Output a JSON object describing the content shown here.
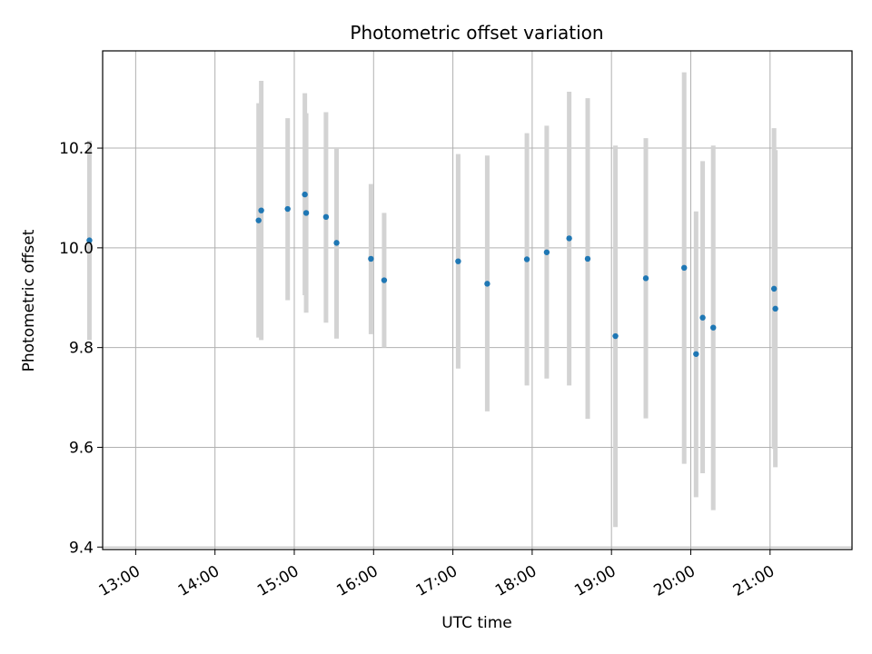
{
  "chart_data": {
    "type": "scatter",
    "title": "Photometric offset variation",
    "xlabel": "UTC time",
    "ylabel": "Photometric offset",
    "x_ticks": [
      "13:00",
      "14:00",
      "15:00",
      "16:00",
      "17:00",
      "18:00",
      "19:00",
      "20:00",
      "21:00"
    ],
    "y_ticks": [
      "9.4",
      "9.6",
      "9.8",
      "10.0",
      "10.2"
    ],
    "xlim": [
      "12:35",
      "22:02"
    ],
    "ylim": [
      9.395,
      10.395
    ],
    "grid": true,
    "colors": {
      "points": "#1f77b4",
      "errorbars": "#d3d3d3",
      "grid": "#b0b0b0"
    },
    "points": [
      {
        "t": "12:25",
        "y": 10.015,
        "err_low": 9.815,
        "err_high": 10.215
      },
      {
        "t": "14:33",
        "y": 10.055,
        "err_low": 9.82,
        "err_high": 10.29
      },
      {
        "t": "14:35",
        "y": 10.075,
        "err_low": 9.815,
        "err_high": 10.335
      },
      {
        "t": "14:55",
        "y": 10.078,
        "err_low": 9.895,
        "err_high": 10.26
      },
      {
        "t": "15:08",
        "y": 10.107,
        "err_low": 9.905,
        "err_high": 10.31
      },
      {
        "t": "15:09",
        "y": 10.07,
        "err_low": 9.87,
        "err_high": 10.27
      },
      {
        "t": "15:24",
        "y": 10.062,
        "err_low": 9.85,
        "err_high": 10.272
      },
      {
        "t": "15:32",
        "y": 10.01,
        "err_low": 9.818,
        "err_high": 10.2
      },
      {
        "t": "15:58",
        "y": 9.978,
        "err_low": 9.827,
        "err_high": 10.128
      },
      {
        "t": "16:08",
        "y": 9.935,
        "err_low": 9.8,
        "err_high": 10.07
      },
      {
        "t": "17:04",
        "y": 9.973,
        "err_low": 9.758,
        "err_high": 10.188
      },
      {
        "t": "17:26",
        "y": 9.928,
        "err_low": 9.672,
        "err_high": 10.185
      },
      {
        "t": "17:56",
        "y": 9.977,
        "err_low": 9.724,
        "err_high": 10.23
      },
      {
        "t": "18:11",
        "y": 9.991,
        "err_low": 9.738,
        "err_high": 10.245
      },
      {
        "t": "18:28",
        "y": 10.019,
        "err_low": 9.724,
        "err_high": 10.313
      },
      {
        "t": "18:42",
        "y": 9.978,
        "err_low": 9.657,
        "err_high": 10.3
      },
      {
        "t": "19:03",
        "y": 9.823,
        "err_low": 9.44,
        "err_high": 10.205
      },
      {
        "t": "19:26",
        "y": 9.939,
        "err_low": 9.658,
        "err_high": 10.22
      },
      {
        "t": "19:55",
        "y": 9.96,
        "err_low": 9.567,
        "err_high": 10.352
      },
      {
        "t": "20:04",
        "y": 9.787,
        "err_low": 9.5,
        "err_high": 10.073
      },
      {
        "t": "20:09",
        "y": 9.86,
        "err_low": 9.548,
        "err_high": 10.174
      },
      {
        "t": "20:17",
        "y": 9.84,
        "err_low": 9.474,
        "err_high": 10.205
      },
      {
        "t": "21:03",
        "y": 9.918,
        "err_low": 9.597,
        "err_high": 10.24
      },
      {
        "t": "21:04",
        "y": 9.878,
        "err_low": 9.56,
        "err_high": 10.196
      }
    ]
  }
}
